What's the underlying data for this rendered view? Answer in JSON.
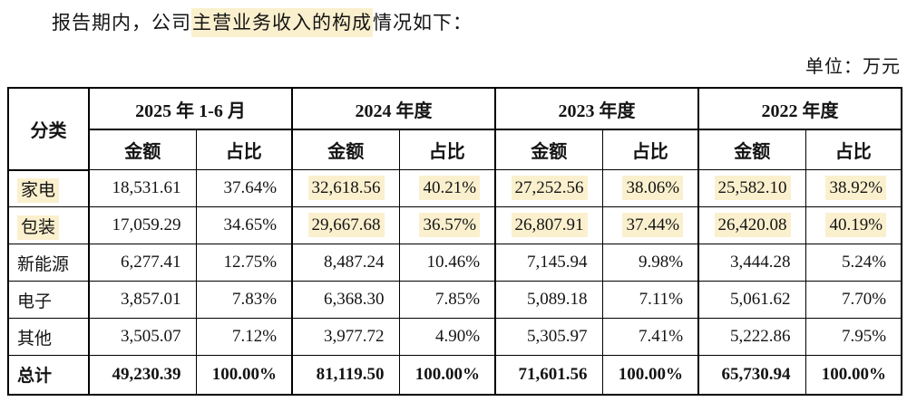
{
  "page": {
    "intro_prefix": "报告期内，公司",
    "intro_highlight": "主营业务收入的构成",
    "intro_suffix": "情况如下：",
    "unit_label": "单位：万元",
    "highlight_color": "#FBF0CE"
  },
  "table": {
    "category_header": "分类",
    "amount_header": "金额",
    "ratio_header": "占比",
    "col_groups": [
      {
        "label": "2025 年 1-6 月"
      },
      {
        "label": "2024 年度"
      },
      {
        "label": "2023 年度"
      },
      {
        "label": "2022 年度"
      }
    ],
    "rows": [
      {
        "category": "家电",
        "cat_hl": true,
        "total": false,
        "cells": [
          {
            "v": "18,531.61",
            "hl": false
          },
          {
            "v": "37.64%",
            "hl": false
          },
          {
            "v": "32,618.56",
            "hl": true
          },
          {
            "v": "40.21%",
            "hl": true
          },
          {
            "v": "27,252.56",
            "hl": true
          },
          {
            "v": "38.06%",
            "hl": true
          },
          {
            "v": "25,582.10",
            "hl": true
          },
          {
            "v": "38.92%",
            "hl": true
          }
        ]
      },
      {
        "category": "包装",
        "cat_hl": true,
        "total": false,
        "cells": [
          {
            "v": "17,059.29",
            "hl": false
          },
          {
            "v": "34.65%",
            "hl": false
          },
          {
            "v": "29,667.68",
            "hl": true
          },
          {
            "v": "36.57%",
            "hl": true
          },
          {
            "v": "26,807.91",
            "hl": true
          },
          {
            "v": "37.44%",
            "hl": true
          },
          {
            "v": "26,420.08",
            "hl": true
          },
          {
            "v": "40.19%",
            "hl": true
          }
        ]
      },
      {
        "category": "新能源",
        "cat_hl": false,
        "total": false,
        "cells": [
          {
            "v": "6,277.41",
            "hl": false
          },
          {
            "v": "12.75%",
            "hl": false
          },
          {
            "v": "8,487.24",
            "hl": false
          },
          {
            "v": "10.46%",
            "hl": false
          },
          {
            "v": "7,145.94",
            "hl": false
          },
          {
            "v": "9.98%",
            "hl": false
          },
          {
            "v": "3,444.28",
            "hl": false
          },
          {
            "v": "5.24%",
            "hl": false
          }
        ]
      },
      {
        "category": "电子",
        "cat_hl": false,
        "total": false,
        "cells": [
          {
            "v": "3,857.01",
            "hl": false
          },
          {
            "v": "7.83%",
            "hl": false
          },
          {
            "v": "6,368.30",
            "hl": false
          },
          {
            "v": "7.85%",
            "hl": false
          },
          {
            "v": "5,089.18",
            "hl": false
          },
          {
            "v": "7.11%",
            "hl": false
          },
          {
            "v": "5,061.62",
            "hl": false
          },
          {
            "v": "7.70%",
            "hl": false
          }
        ]
      },
      {
        "category": "其他",
        "cat_hl": false,
        "total": false,
        "cells": [
          {
            "v": "3,505.07",
            "hl": false
          },
          {
            "v": "7.12%",
            "hl": false
          },
          {
            "v": "3,977.72",
            "hl": false
          },
          {
            "v": "4.90%",
            "hl": false
          },
          {
            "v": "5,305.97",
            "hl": false
          },
          {
            "v": "7.41%",
            "hl": false
          },
          {
            "v": "5,222.86",
            "hl": false
          },
          {
            "v": "7.95%",
            "hl": false
          }
        ]
      },
      {
        "category": "总计",
        "cat_hl": false,
        "total": true,
        "cells": [
          {
            "v": "49,230.39",
            "hl": false
          },
          {
            "v": "100.00%",
            "hl": false
          },
          {
            "v": "81,119.50",
            "hl": false
          },
          {
            "v": "100.00%",
            "hl": false
          },
          {
            "v": "71,601.56",
            "hl": false
          },
          {
            "v": "100.00%",
            "hl": false
          },
          {
            "v": "65,730.94",
            "hl": false
          },
          {
            "v": "100.00%",
            "hl": false
          }
        ]
      }
    ]
  }
}
